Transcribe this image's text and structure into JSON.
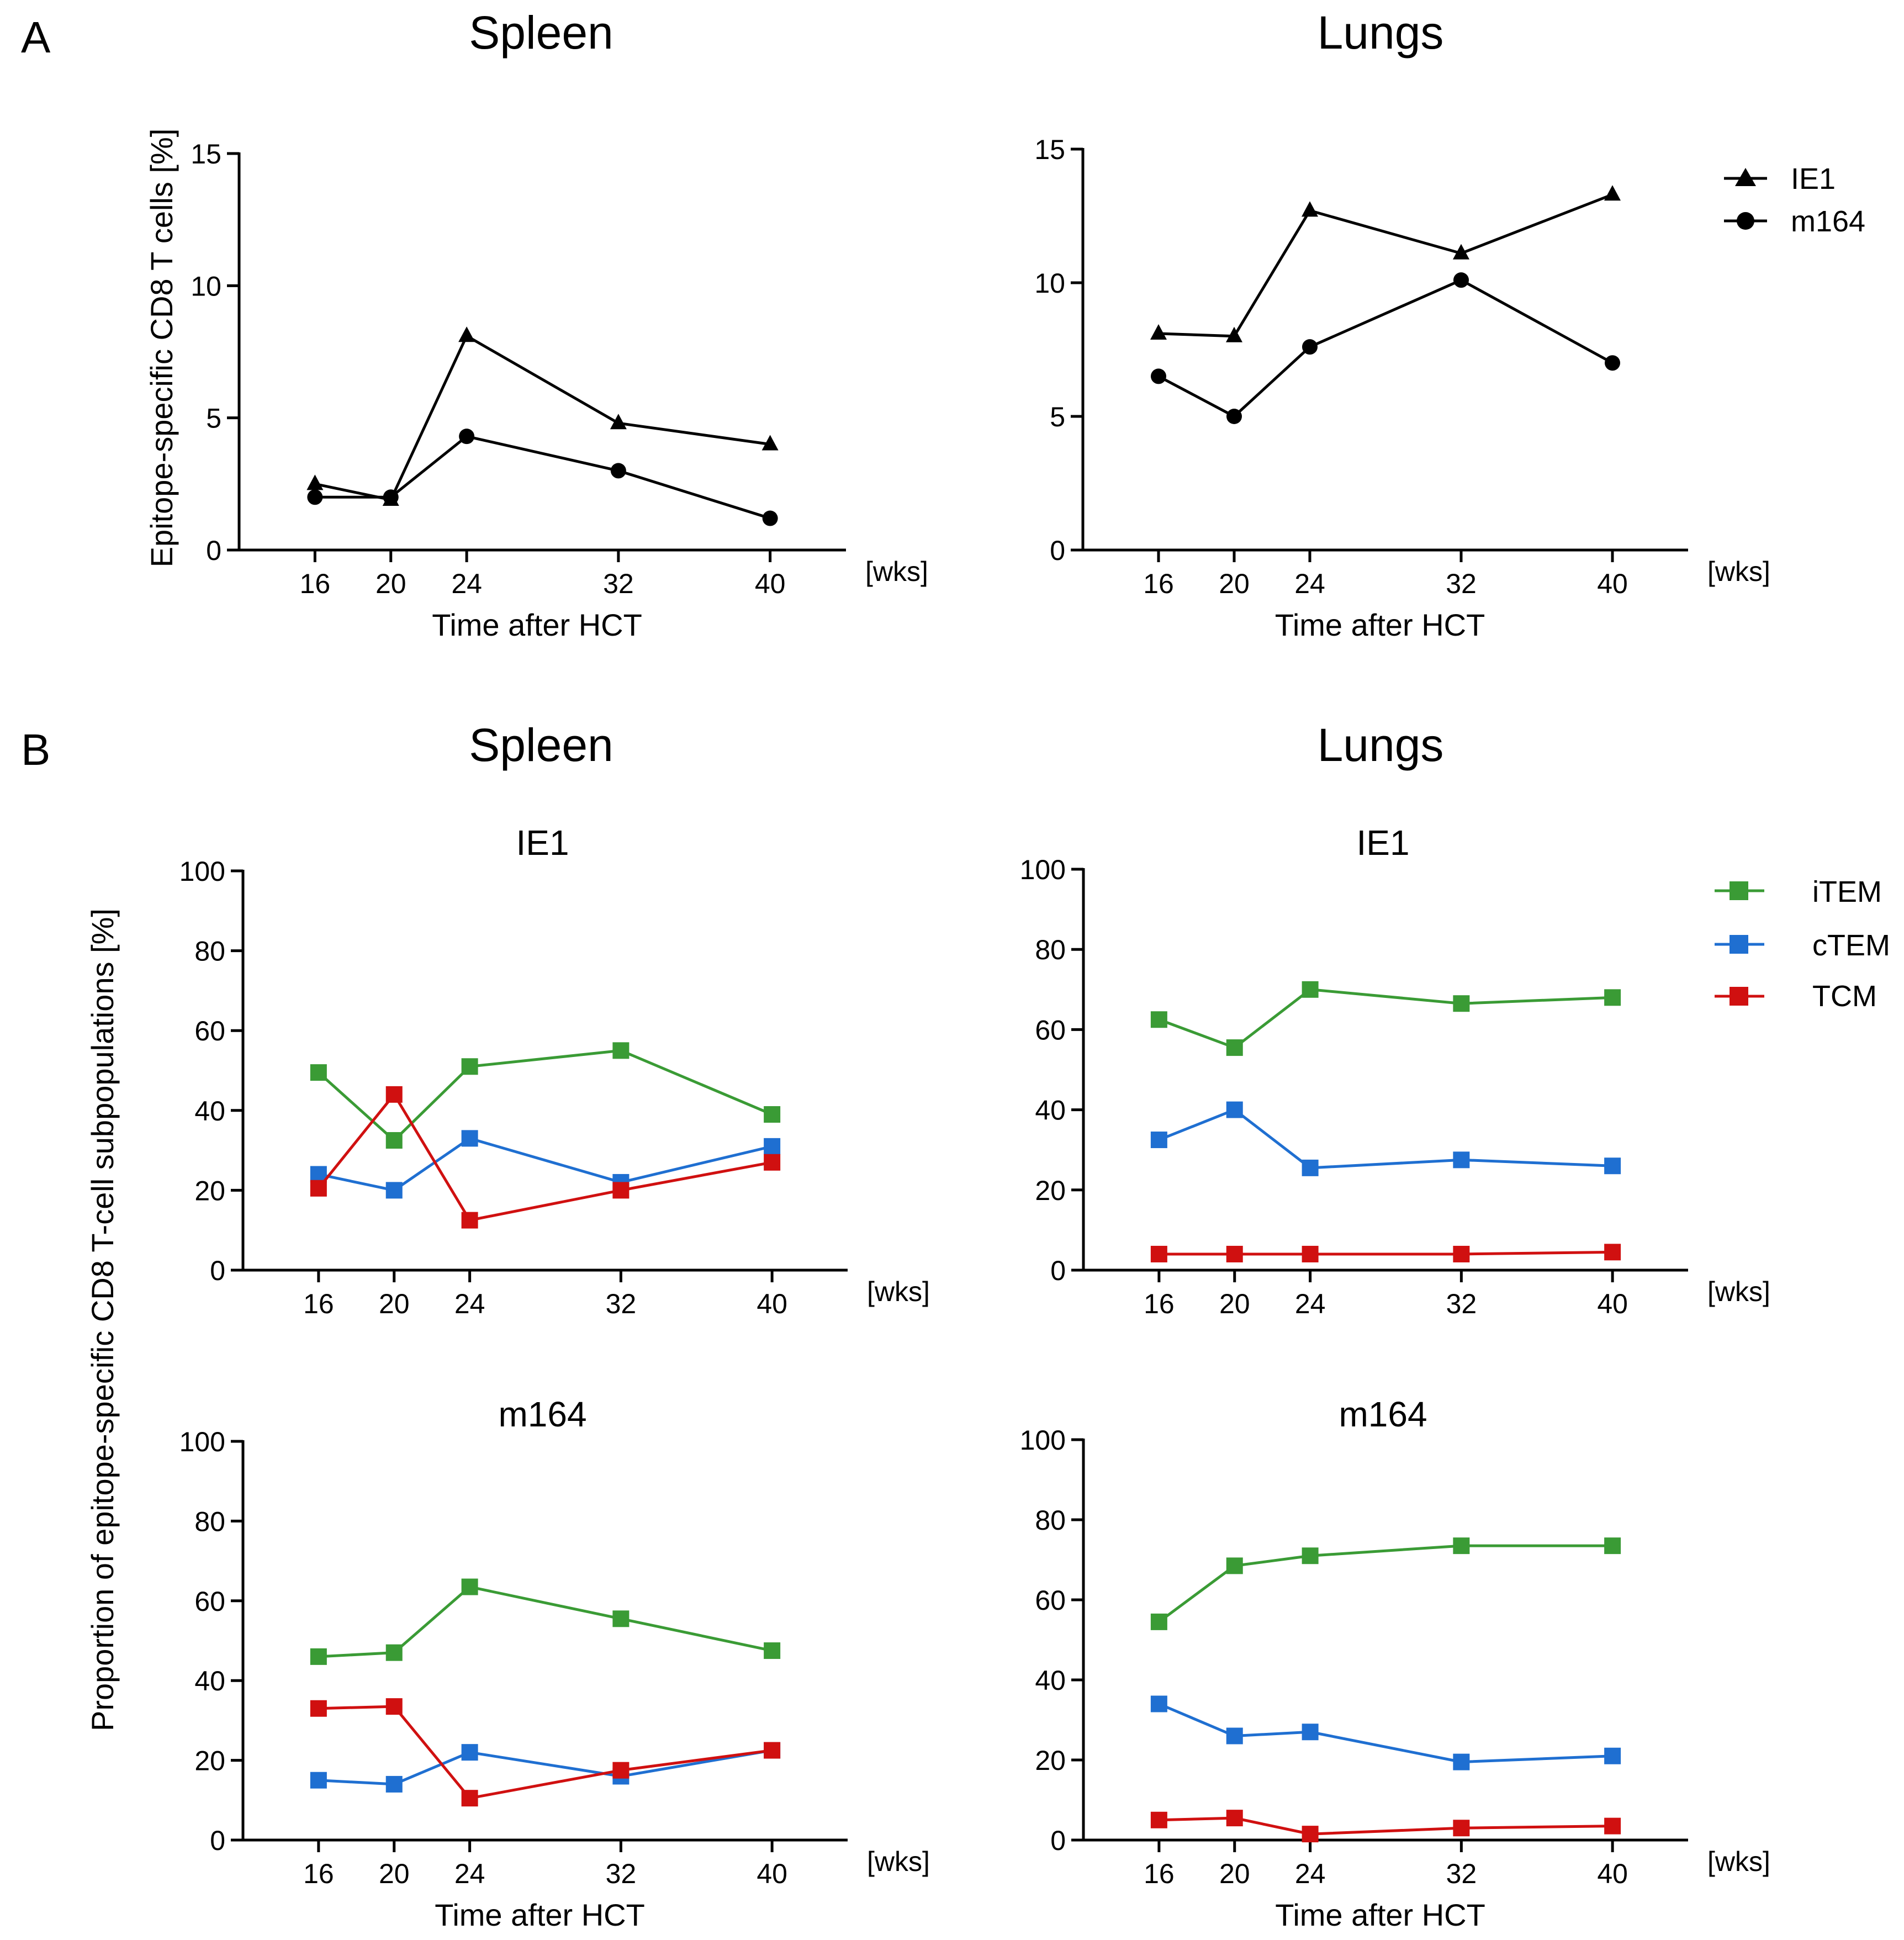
{
  "figure": {
    "panel_letters": [
      "A",
      "B"
    ],
    "column_titles": {
      "spleen": "Spleen",
      "lungs": "Lungs"
    },
    "x_unit": "[wks]",
    "x_label": "Time after HCT",
    "y_label_A": "Epitope-specific CD8 T cells [%]",
    "y_label_B": "Proportion of epitope-specific CD8 T-cell subpopulations [%]"
  },
  "legend_A": [
    {
      "name": "IE1",
      "marker": "triangle",
      "color": "#000000"
    },
    {
      "name": "m164",
      "marker": "circle",
      "color": "#000000"
    }
  ],
  "legend_B": [
    {
      "name": "iTEM",
      "marker": "square",
      "color": "#3a9b35"
    },
    {
      "name": "cTEM",
      "marker": "square",
      "color": "#1f6fd1"
    },
    {
      "name": "TCM",
      "marker": "square",
      "color": "#d01010"
    }
  ],
  "chart_data": [
    {
      "id": "A-spleen",
      "type": "line",
      "title": "Spleen",
      "subtitle": "",
      "xlabel": "Time after HCT",
      "ylabel": "Epitope-specific CD8 T cells [%]",
      "x": [
        16,
        20,
        24,
        32,
        40
      ],
      "xlim": [
        12,
        44
      ],
      "ylim": [
        0,
        15
      ],
      "yticks": [
        0,
        5,
        10,
        15
      ],
      "series": [
        {
          "name": "IE1",
          "marker": "triangle",
          "color": "#000000",
          "values": [
            2.5,
            1.9,
            8.1,
            4.8,
            4.0
          ]
        },
        {
          "name": "m164",
          "marker": "circle",
          "color": "#000000",
          "values": [
            2.0,
            2.0,
            4.3,
            3.0,
            1.2
          ]
        }
      ]
    },
    {
      "id": "A-lungs",
      "type": "line",
      "title": "Lungs",
      "subtitle": "",
      "xlabel": "Time after HCT",
      "ylabel": "",
      "x": [
        16,
        20,
        24,
        32,
        40
      ],
      "xlim": [
        12,
        44
      ],
      "ylim": [
        0,
        15
      ],
      "yticks": [
        0,
        5,
        10,
        15
      ],
      "series": [
        {
          "name": "IE1",
          "marker": "triangle",
          "color": "#000000",
          "values": [
            8.1,
            8.0,
            12.7,
            11.1,
            13.3
          ]
        },
        {
          "name": "m164",
          "marker": "circle",
          "color": "#000000",
          "values": [
            6.5,
            5.0,
            7.6,
            10.1,
            7.0
          ]
        }
      ]
    },
    {
      "id": "B-spleen-IE1",
      "type": "line",
      "title": "Spleen",
      "subtitle": "IE1",
      "xlabel": "",
      "ylabel": "",
      "x": [
        16,
        20,
        24,
        32,
        40
      ],
      "xlim": [
        12,
        44
      ],
      "ylim": [
        0,
        100
      ],
      "yticks": [
        0,
        20,
        40,
        60,
        80,
        100
      ],
      "series": [
        {
          "name": "iTEM",
          "marker": "square",
          "color": "#3a9b35",
          "values": [
            49.5,
            32.5,
            51.0,
            55.0,
            39.0
          ]
        },
        {
          "name": "cTEM",
          "marker": "square",
          "color": "#1f6fd1",
          "values": [
            24.0,
            20.0,
            33.0,
            22.0,
            31.0
          ]
        },
        {
          "name": "TCM",
          "marker": "square",
          "color": "#d01010",
          "values": [
            20.5,
            44.0,
            12.5,
            20.0,
            27.0
          ]
        }
      ]
    },
    {
      "id": "B-lungs-IE1",
      "type": "line",
      "title": "Lungs",
      "subtitle": "IE1",
      "xlabel": "",
      "ylabel": "",
      "x": [
        16,
        20,
        24,
        32,
        40
      ],
      "xlim": [
        12,
        44
      ],
      "ylim": [
        0,
        100
      ],
      "yticks": [
        0,
        20,
        40,
        60,
        80,
        100
      ],
      "series": [
        {
          "name": "iTEM",
          "marker": "square",
          "color": "#3a9b35",
          "values": [
            62.5,
            55.5,
            70.0,
            66.5,
            68.0
          ]
        },
        {
          "name": "cTEM",
          "marker": "square",
          "color": "#1f6fd1",
          "values": [
            32.5,
            40.0,
            25.5,
            27.5,
            26.0
          ]
        },
        {
          "name": "TCM",
          "marker": "square",
          "color": "#d01010",
          "values": [
            4.0,
            4.0,
            4.0,
            4.0,
            4.5
          ]
        }
      ]
    },
    {
      "id": "B-spleen-m164",
      "type": "line",
      "title": "",
      "subtitle": "m164",
      "xlabel": "Time after HCT",
      "ylabel": "",
      "x": [
        16,
        20,
        24,
        32,
        40
      ],
      "xlim": [
        12,
        44
      ],
      "ylim": [
        0,
        100
      ],
      "yticks": [
        0,
        20,
        40,
        60,
        80,
        100
      ],
      "series": [
        {
          "name": "iTEM",
          "marker": "square",
          "color": "#3a9b35",
          "values": [
            46.0,
            47.0,
            63.5,
            55.5,
            47.5
          ]
        },
        {
          "name": "cTEM",
          "marker": "square",
          "color": "#1f6fd1",
          "values": [
            15.0,
            14.0,
            22.0,
            16.0,
            22.5
          ]
        },
        {
          "name": "TCM",
          "marker": "square",
          "color": "#d01010",
          "values": [
            33.0,
            33.5,
            10.5,
            17.5,
            22.5
          ]
        }
      ]
    },
    {
      "id": "B-lungs-m164",
      "type": "line",
      "title": "",
      "subtitle": "m164",
      "xlabel": "Time after HCT",
      "ylabel": "",
      "x": [
        16,
        20,
        24,
        32,
        40
      ],
      "xlim": [
        12,
        44
      ],
      "ylim": [
        0,
        100
      ],
      "yticks": [
        0,
        20,
        40,
        60,
        80,
        100
      ],
      "series": [
        {
          "name": "iTEM",
          "marker": "square",
          "color": "#3a9b35",
          "values": [
            54.5,
            68.5,
            71.0,
            73.5,
            73.5
          ]
        },
        {
          "name": "cTEM",
          "marker": "square",
          "color": "#1f6fd1",
          "values": [
            34.0,
            26.0,
            27.0,
            19.5,
            21.0
          ]
        },
        {
          "name": "TCM",
          "marker": "square",
          "color": "#d01010",
          "values": [
            5.0,
            5.5,
            1.5,
            3.0,
            3.5
          ]
        }
      ]
    }
  ]
}
